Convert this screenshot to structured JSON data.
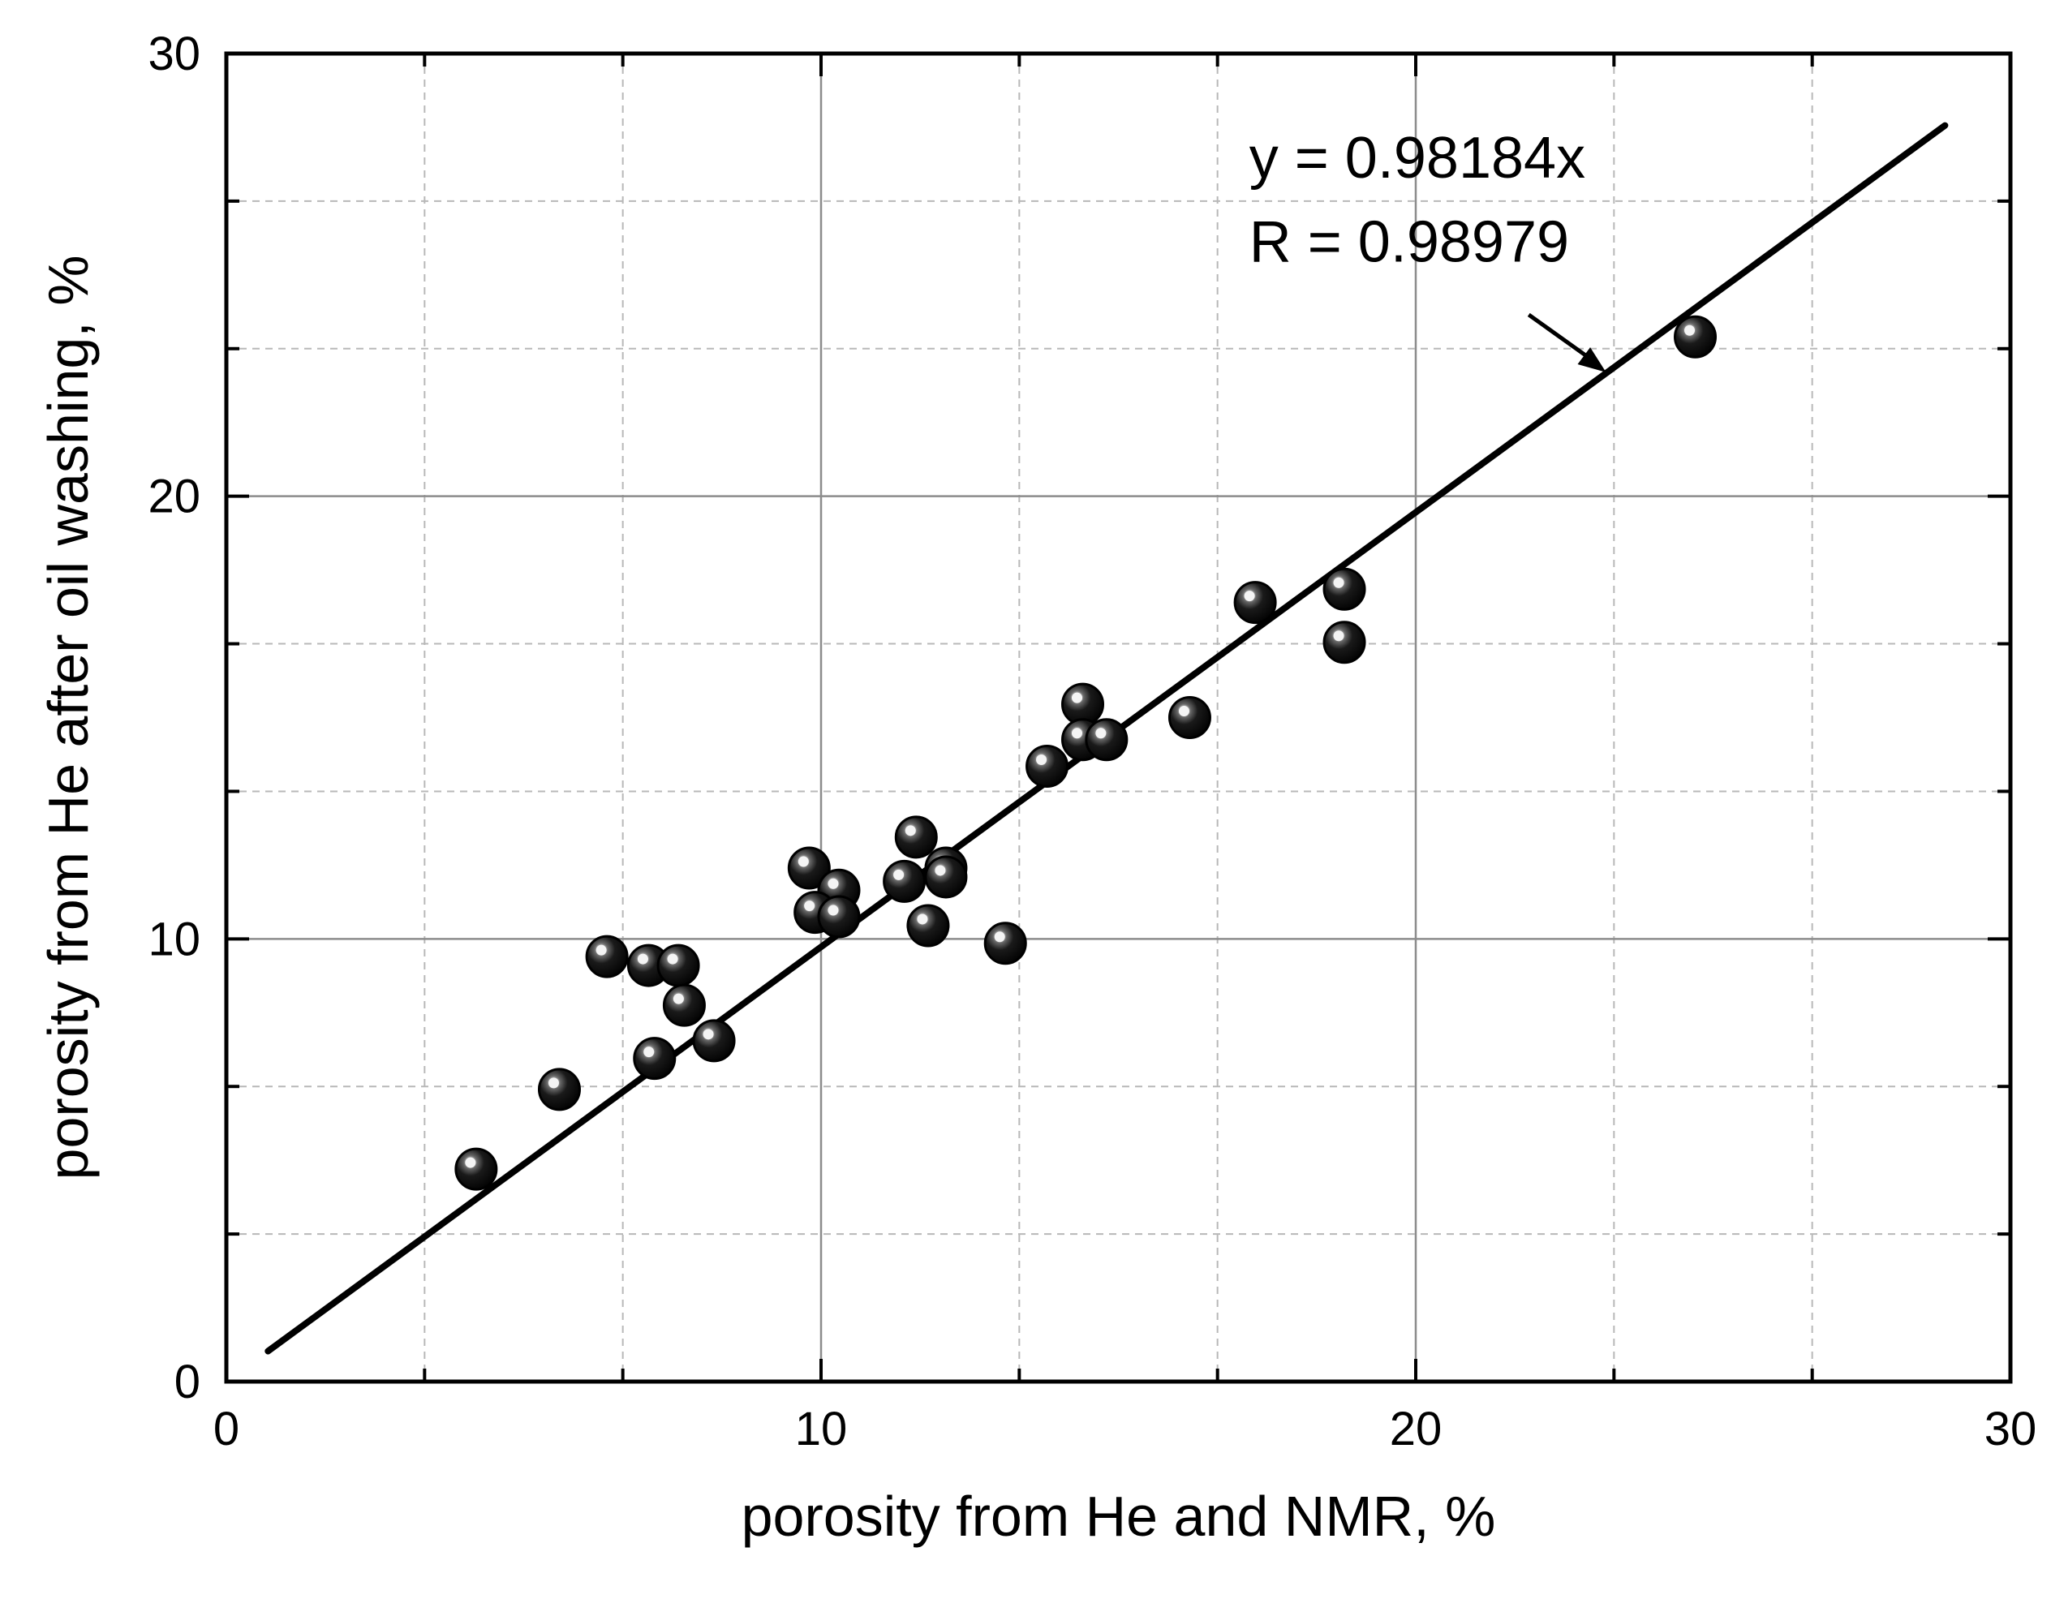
{
  "chart_data": {
    "type": "scatter",
    "xlabel": "porosity from He and NMR, %",
    "ylabel": "porosity from He after oil washing, %",
    "xlim": [
      0,
      30
    ],
    "ylim": [
      0,
      30
    ],
    "x_ticks": [
      "0",
      "10",
      "20",
      "30"
    ],
    "y_ticks": [
      "0",
      "10",
      "20",
      "30"
    ],
    "grid": true,
    "series": [
      {
        "name": "samples",
        "points": [
          {
            "x": 4.2,
            "y": 4.8
          },
          {
            "x": 5.6,
            "y": 6.6
          },
          {
            "x": 6.4,
            "y": 9.6
          },
          {
            "x": 7.1,
            "y": 9.4
          },
          {
            "x": 7.6,
            "y": 9.4
          },
          {
            "x": 7.7,
            "y": 8.5
          },
          {
            "x": 7.2,
            "y": 7.3
          },
          {
            "x": 8.2,
            "y": 7.7
          },
          {
            "x": 9.8,
            "y": 11.6
          },
          {
            "x": 10.3,
            "y": 11.1
          },
          {
            "x": 9.9,
            "y": 10.6
          },
          {
            "x": 10.3,
            "y": 10.5
          },
          {
            "x": 11.4,
            "y": 11.3
          },
          {
            "x": 11.6,
            "y": 12.3
          },
          {
            "x": 12.1,
            "y": 11.6
          },
          {
            "x": 12.1,
            "y": 11.4
          },
          {
            "x": 11.8,
            "y": 10.3
          },
          {
            "x": 13.1,
            "y": 9.9
          },
          {
            "x": 13.8,
            "y": 13.9
          },
          {
            "x": 14.4,
            "y": 15.3
          },
          {
            "x": 14.4,
            "y": 14.5
          },
          {
            "x": 14.8,
            "y": 14.5
          },
          {
            "x": 16.2,
            "y": 15.0
          },
          {
            "x": 17.3,
            "y": 17.6
          },
          {
            "x": 18.8,
            "y": 17.9
          },
          {
            "x": 18.8,
            "y": 16.7
          },
          {
            "x": 24.7,
            "y": 23.6
          }
        ]
      }
    ],
    "fit_line": {
      "slope": 0.98184,
      "x_range": [
        0.7,
        28.9
      ]
    },
    "annotations": {
      "equation": "y = 0.98184x",
      "r_value": "R = 0.98979"
    }
  }
}
